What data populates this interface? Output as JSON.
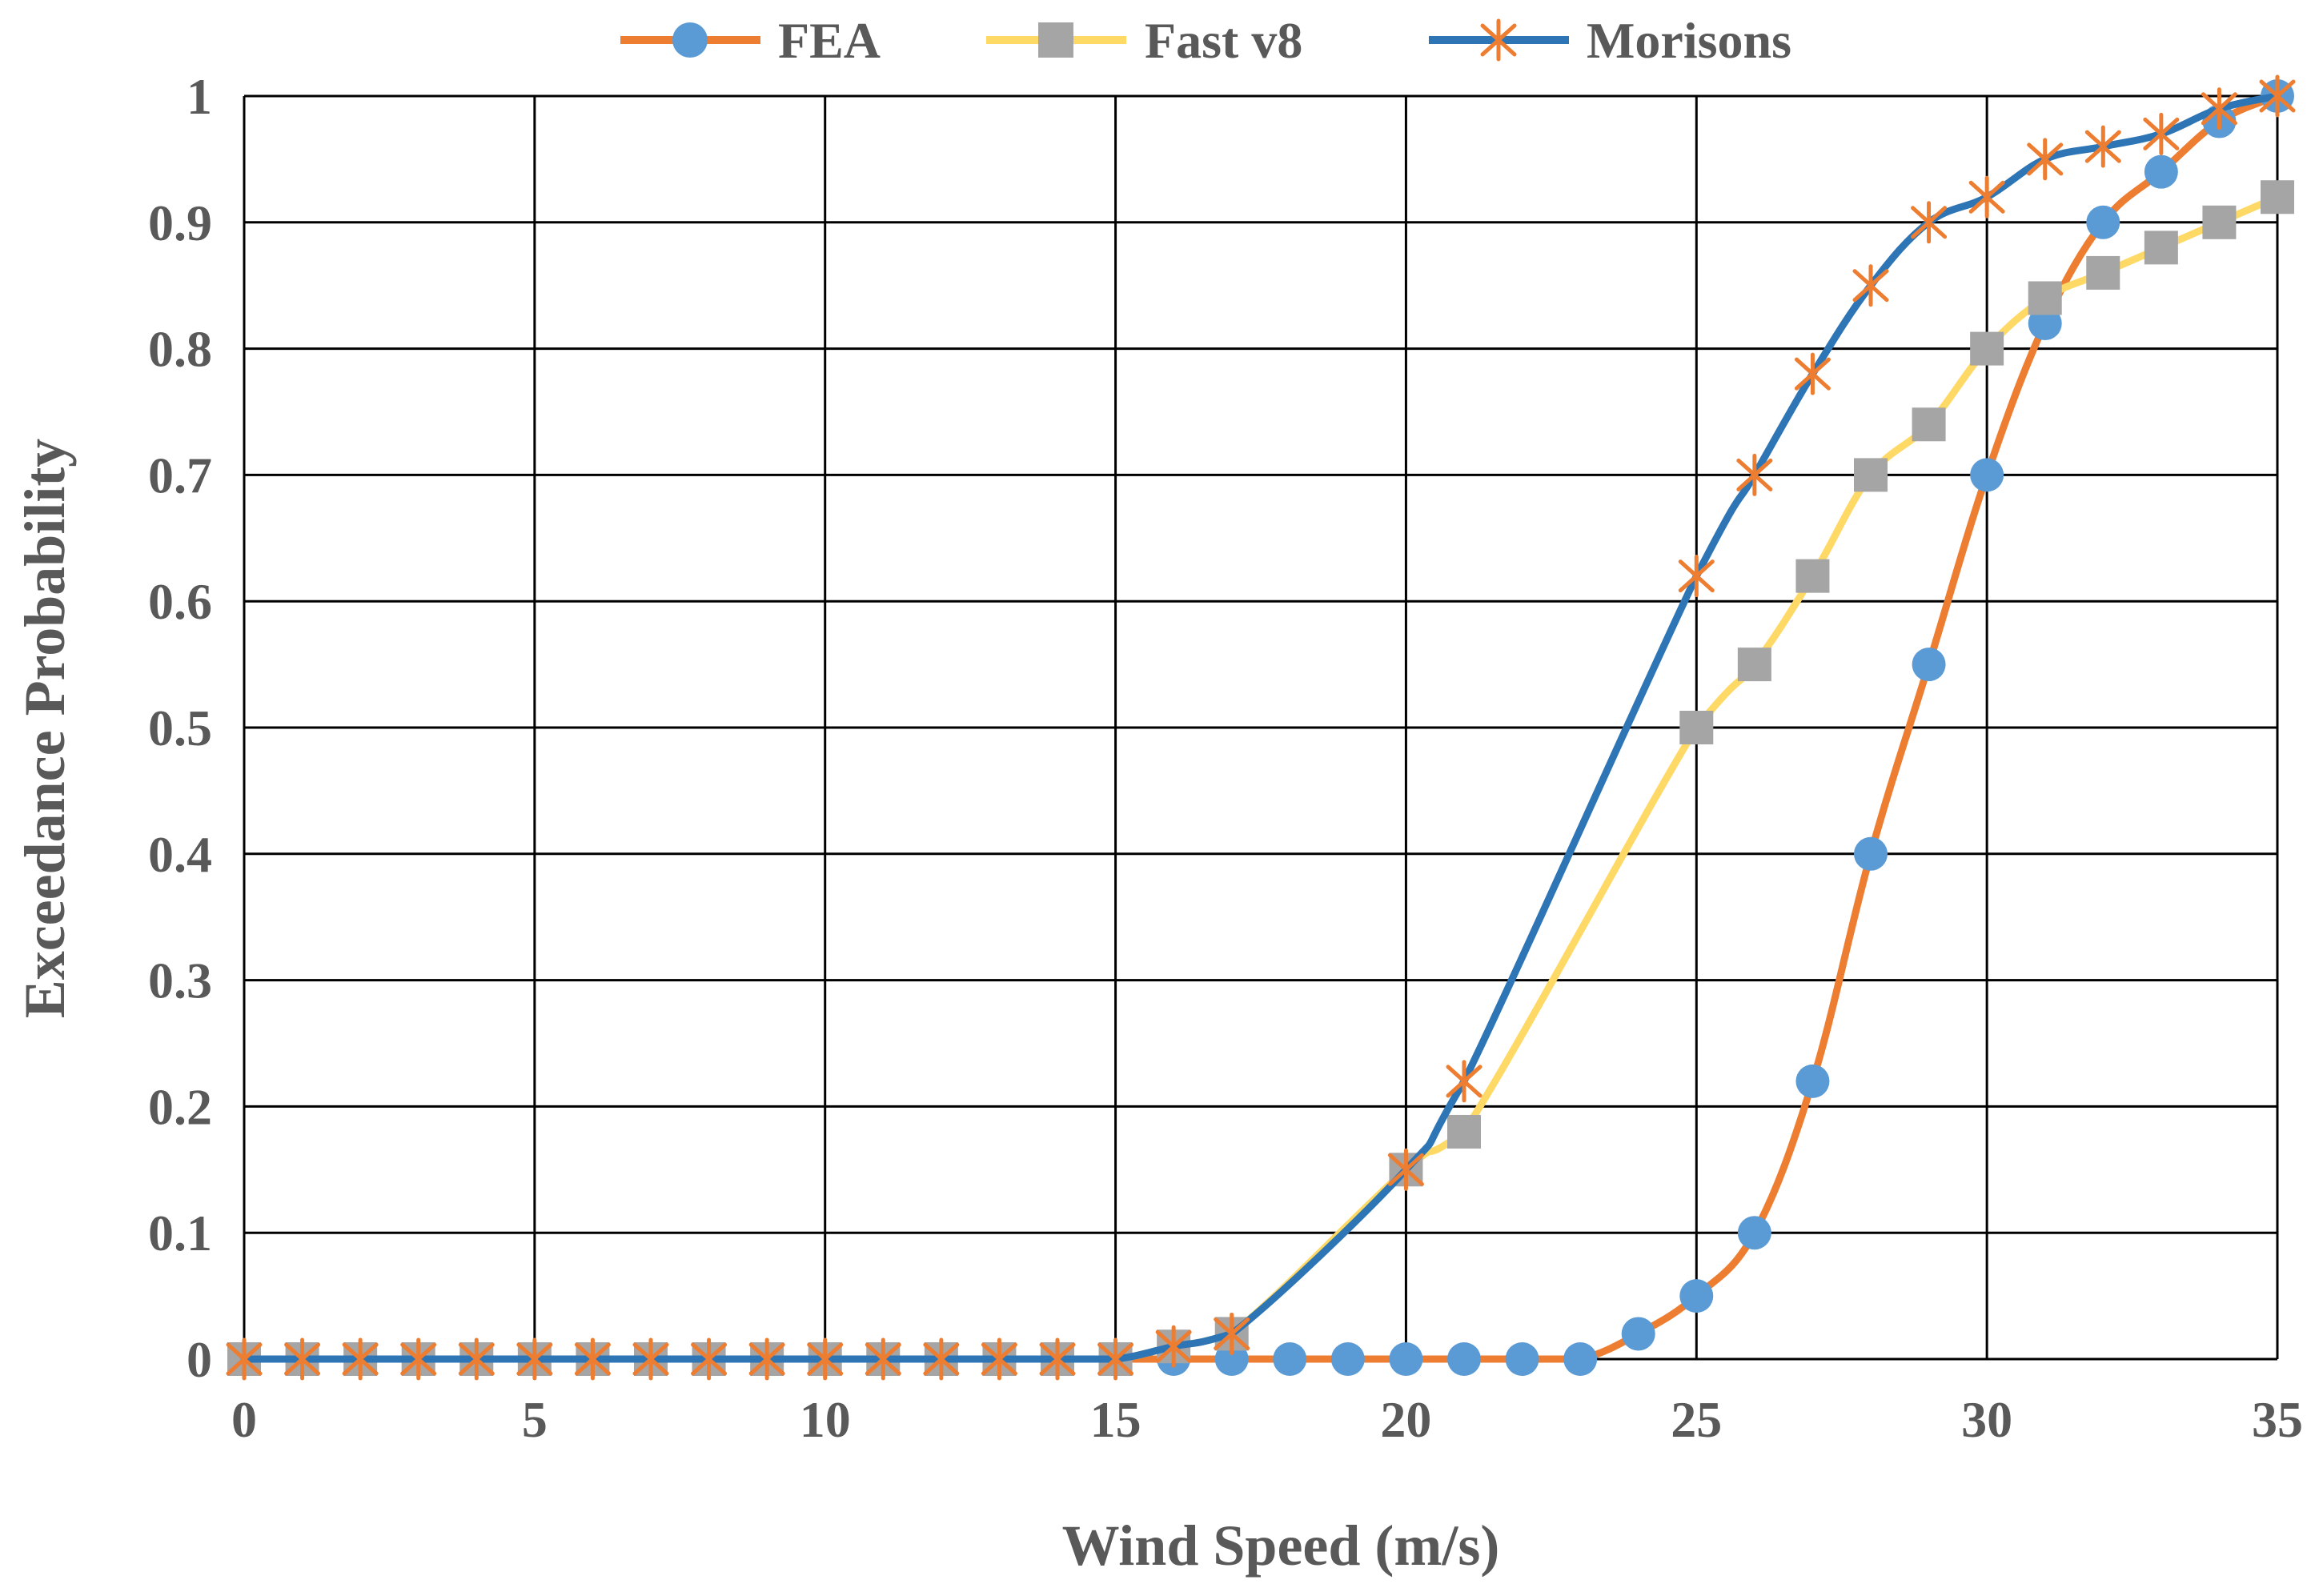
{
  "chart_data": {
    "type": "line",
    "title": "",
    "xlabel": "Wind Speed (m/s)",
    "ylabel": "Exceedance Probability",
    "xlim": [
      0,
      35
    ],
    "ylim": [
      0,
      1
    ],
    "xticks": [
      0,
      5,
      10,
      15,
      20,
      25,
      30,
      35
    ],
    "yticks": [
      0,
      0.1,
      0.2,
      0.3,
      0.4,
      0.5,
      0.6,
      0.7,
      0.8,
      0.9,
      1
    ],
    "xtick_labels": [
      "0",
      "5",
      "10",
      "15",
      "20",
      "25",
      "30",
      "35"
    ],
    "ytick_labels": [
      "0",
      "0.1",
      "0.2",
      "0.3",
      "0.4",
      "0.5",
      "0.6",
      "0.7",
      "0.8",
      "0.9",
      "1"
    ],
    "grid": true,
    "legend_position": "top",
    "series": [
      {
        "name": "FEA",
        "line_color": "#ED7D31",
        "marker": "circle",
        "marker_color": "#5B9BD5",
        "x": [
          0,
          1,
          2,
          3,
          4,
          5,
          6,
          7,
          8,
          9,
          10,
          11,
          12,
          13,
          14,
          15,
          16,
          17,
          18,
          19,
          20,
          21,
          22,
          23,
          24,
          25,
          26,
          27,
          28,
          29,
          30,
          31,
          32,
          33,
          34,
          35
        ],
        "y": [
          0,
          0,
          0,
          0,
          0,
          0,
          0,
          0,
          0,
          0,
          0,
          0,
          0,
          0,
          0,
          0,
          0,
          0,
          0,
          0,
          0,
          0,
          0,
          0,
          0.02,
          0.05,
          0.1,
          0.22,
          0.4,
          0.55,
          0.7,
          0.82,
          0.9,
          0.94,
          0.98,
          1.0
        ]
      },
      {
        "name": "Fast v8",
        "line_color": "#FFD966",
        "marker": "square",
        "marker_color": "#A5A5A5",
        "x": [
          0,
          1,
          2,
          3,
          4,
          5,
          6,
          7,
          8,
          9,
          10,
          11,
          12,
          13,
          14,
          15,
          16,
          17,
          20,
          21,
          25,
          26,
          27,
          28,
          29,
          30,
          31,
          32,
          33,
          34,
          35
        ],
        "y": [
          0,
          0,
          0,
          0,
          0,
          0,
          0,
          0,
          0,
          0,
          0,
          0,
          0,
          0,
          0,
          0,
          0.01,
          0.02,
          0.15,
          0.18,
          0.5,
          0.55,
          0.62,
          0.7,
          0.74,
          0.8,
          0.84,
          0.86,
          0.88,
          0.9,
          0.92
        ]
      },
      {
        "name": "Morisons",
        "line_color": "#2E75B6",
        "marker": "star",
        "marker_color": "#ED7D31",
        "x": [
          0,
          1,
          2,
          3,
          4,
          5,
          6,
          7,
          8,
          9,
          10,
          11,
          12,
          13,
          14,
          15,
          16,
          17,
          20,
          21,
          25,
          26,
          27,
          28,
          29,
          30,
          31,
          32,
          33,
          34,
          35
        ],
        "y": [
          0,
          0,
          0,
          0,
          0,
          0,
          0,
          0,
          0,
          0,
          0,
          0,
          0,
          0,
          0,
          0,
          0.01,
          0.02,
          0.15,
          0.22,
          0.62,
          0.7,
          0.78,
          0.85,
          0.9,
          0.92,
          0.95,
          0.96,
          0.97,
          0.99,
          1.0
        ]
      }
    ]
  }
}
